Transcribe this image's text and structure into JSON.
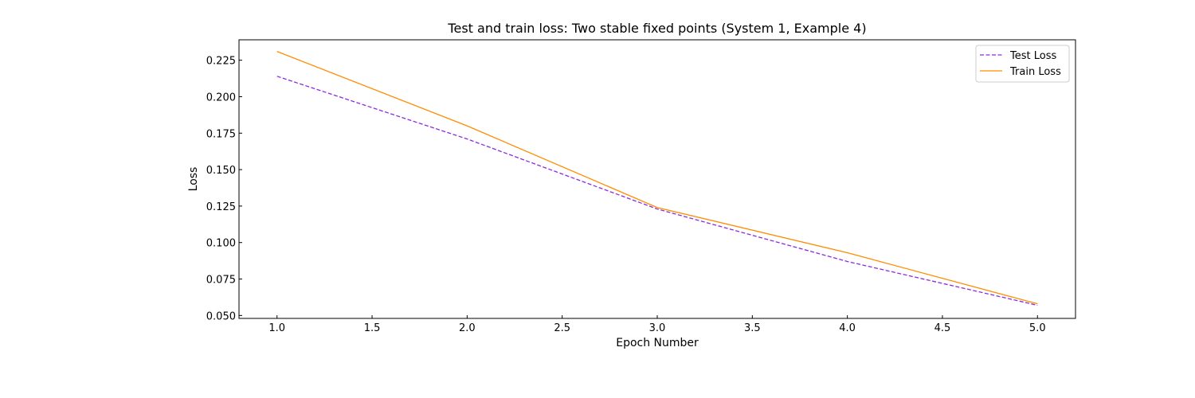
{
  "chart_data": {
    "type": "line",
    "title": "Test and train loss: Two stable fixed points (System 1, Example 4)",
    "xlabel": "Epoch Number",
    "ylabel": "Loss",
    "x": [
      1,
      2,
      3,
      4,
      5
    ],
    "xlim": [
      0.8,
      5.2
    ],
    "ylim": [
      0.048,
      0.239
    ],
    "xticks": [
      1.0,
      1.5,
      2.0,
      2.5,
      3.0,
      3.5,
      4.0,
      4.5,
      5.0
    ],
    "xtick_labels": [
      "1.0",
      "1.5",
      "2.0",
      "2.5",
      "3.0",
      "3.5",
      "4.0",
      "4.5",
      "5.0"
    ],
    "yticks": [
      0.05,
      0.075,
      0.1,
      0.125,
      0.15,
      0.175,
      0.2,
      0.225
    ],
    "ytick_labels": [
      "0.050",
      "0.075",
      "0.100",
      "0.125",
      "0.150",
      "0.175",
      "0.200",
      "0.225"
    ],
    "grid": false,
    "legend_position": "top-right",
    "series": [
      {
        "name": "Test Loss",
        "values": [
          0.214,
          0.171,
          0.123,
          0.087,
          0.057
        ],
        "color": "#8a2be2",
        "style": "dashed"
      },
      {
        "name": "Train Loss",
        "values": [
          0.231,
          0.18,
          0.124,
          0.093,
          0.058
        ],
        "color": "#ff8c00",
        "style": "solid"
      }
    ]
  }
}
